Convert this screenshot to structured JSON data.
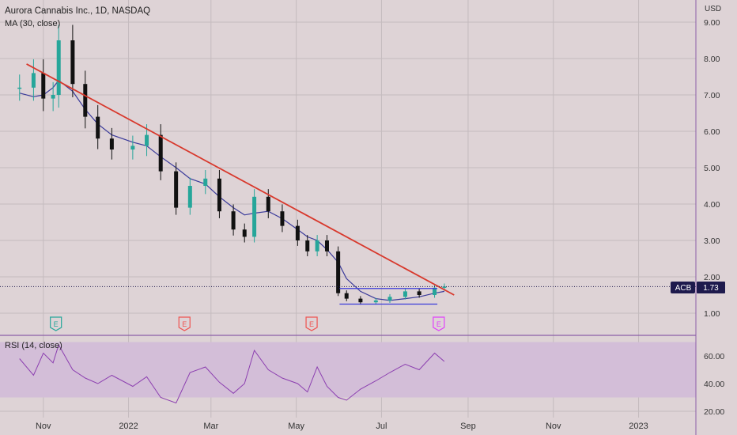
{
  "legend": {
    "title": "Aurora Cannabis Inc., 1D, NASDAQ",
    "ma": "MA (30, close)",
    "rsi": "RSI (14, close)"
  },
  "price_axis": {
    "currency": "USD",
    "ticks": [
      "9.00",
      "8.00",
      "7.00",
      "6.00",
      "5.00",
      "4.00",
      "3.00",
      "2.00",
      "1.00"
    ]
  },
  "rsi_axis": {
    "ticks": [
      "60.00",
      "40.00",
      "20.00"
    ]
  },
  "time_axis": {
    "labels": [
      "Nov",
      "2022",
      "Mar",
      "May",
      "Jul",
      "Sep",
      "Nov",
      "2023"
    ]
  },
  "last_price": {
    "symbol": "ACB",
    "value": "1.73"
  },
  "earnings_markers": [
    {
      "label": "E",
      "color": "#26a69a"
    },
    {
      "label": "E",
      "color": "#ef5350"
    },
    {
      "label": "E",
      "color": "#ef5350"
    },
    {
      "label": "E",
      "color": "#e040fb"
    }
  ],
  "colors": {
    "up": "#26a69a",
    "down": "#111111",
    "ma": "#3a3a9a",
    "trendline": "#d8382c",
    "support": "#3b3bd9",
    "rsi": "#8c3fb0",
    "rsi_band": "#d3bed8",
    "grid": "#c4bbbe",
    "label_bg": "#1e1a4d",
    "divider": "#8c5fa8"
  },
  "chart_data": [
    {
      "type": "candlestick",
      "title": "Aurora Cannabis Inc., 1D, NASDAQ",
      "ylabel": "USD",
      "ylim": [
        0.5,
        9.5
      ],
      "x": [
        "2021-10-15",
        "2021-10-25",
        "2021-11-01",
        "2021-11-08",
        "2021-11-12",
        "2021-11-22",
        "2021-12-01",
        "2021-12-10",
        "2021-12-20",
        "2022-01-04",
        "2022-01-14",
        "2022-01-24",
        "2022-02-04",
        "2022-02-14",
        "2022-02-25",
        "2022-03-07",
        "2022-03-17",
        "2022-03-25",
        "2022-04-01",
        "2022-04-11",
        "2022-04-21",
        "2022-05-02",
        "2022-05-09",
        "2022-05-16",
        "2022-05-23",
        "2022-05-31",
        "2022-06-06",
        "2022-06-16",
        "2022-06-27",
        "2022-07-07",
        "2022-07-18",
        "2022-07-28",
        "2022-08-08",
        "2022-08-15"
      ],
      "close": [
        7.2,
        7.6,
        6.9,
        7.0,
        8.5,
        7.3,
        6.4,
        5.8,
        5.5,
        5.6,
        5.9,
        4.9,
        3.9,
        4.5,
        4.7,
        3.8,
        3.3,
        3.1,
        4.2,
        3.8,
        3.4,
        3.0,
        2.7,
        3.0,
        2.7,
        1.55,
        1.4,
        1.3,
        1.35,
        1.45,
        1.6,
        1.5,
        1.7,
        1.73
      ],
      "series": [
        {
          "name": "MA (30, close)",
          "values": [
            7.05,
            6.95,
            7.0,
            7.2,
            7.4,
            7.1,
            6.6,
            6.2,
            5.9,
            5.7,
            5.6,
            5.3,
            5.0,
            4.7,
            4.55,
            4.2,
            3.9,
            3.7,
            3.75,
            3.8,
            3.6,
            3.3,
            3.1,
            3.0,
            2.75,
            2.4,
            1.95,
            1.6,
            1.4,
            1.35,
            1.4,
            1.45,
            1.55,
            1.6
          ]
        }
      ],
      "annotations": {
        "trendline": {
          "from": [
            "2021-10-20",
            7.85
          ],
          "to": [
            "2022-08-22",
            1.5
          ]
        },
        "support": {
          "from": [
            "2022-06-01",
            1.25
          ],
          "to": [
            "2022-08-10",
            1.25
          ]
        },
        "resistance": {
          "from": [
            "2022-06-01",
            1.68
          ],
          "to": [
            "2022-08-10",
            1.68
          ]
        },
        "last_price": 1.73
      }
    },
    {
      "type": "line",
      "title": "RSI (14, close)",
      "ylim": [
        15,
        75
      ],
      "band": [
        30,
        70
      ],
      "x": [
        "2021-10-15",
        "2021-10-25",
        "2021-11-01",
        "2021-11-08",
        "2021-11-12",
        "2021-11-22",
        "2021-12-01",
        "2021-12-10",
        "2021-12-20",
        "2022-01-04",
        "2022-01-14",
        "2022-01-24",
        "2022-02-04",
        "2022-02-14",
        "2022-02-25",
        "2022-03-07",
        "2022-03-17",
        "2022-03-25",
        "2022-04-01",
        "2022-04-11",
        "2022-04-21",
        "2022-05-02",
        "2022-05-09",
        "2022-05-16",
        "2022-05-23",
        "2022-05-31",
        "2022-06-06",
        "2022-06-16",
        "2022-06-27",
        "2022-07-07",
        "2022-07-18",
        "2022-07-28",
        "2022-08-08",
        "2022-08-15"
      ],
      "series": [
        {
          "name": "RSI (14, close)",
          "values": [
            58,
            46,
            62,
            55,
            68,
            50,
            44,
            40,
            46,
            38,
            45,
            30,
            26,
            48,
            52,
            41,
            33,
            40,
            64,
            50,
            44,
            40,
            34,
            52,
            38,
            30,
            28,
            36,
            42,
            48,
            54,
            50,
            62,
            56
          ]
        }
      ]
    }
  ]
}
